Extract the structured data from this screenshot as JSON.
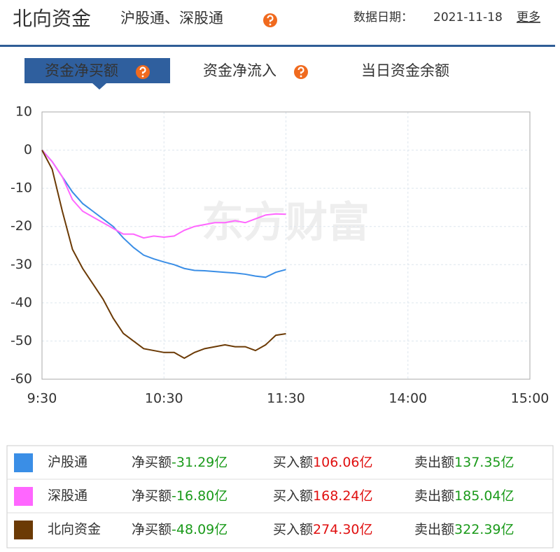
{
  "header": {
    "title": "北向资金",
    "subtitle": "沪股通、深股通",
    "date_label": "数据日期：",
    "date": "2021-11-18",
    "more": "更多"
  },
  "tabs": [
    "资金净买额",
    "资金净流入",
    "当日资金余额"
  ],
  "chart_data": {
    "type": "line",
    "watermark": "东方财富",
    "x": [
      0,
      5,
      10,
      15,
      20,
      25,
      30,
      35,
      40,
      45,
      50,
      55,
      60,
      65,
      70,
      75,
      80,
      85,
      90,
      95,
      100,
      105,
      110,
      115,
      120
    ],
    "xlim": [
      0,
      240
    ],
    "xticks": [
      {
        "value": 0,
        "label": "9:30"
      },
      {
        "value": 60,
        "label": "10:30"
      },
      {
        "value": 120,
        "label": "11:30"
      },
      {
        "value": 180,
        "label": "14:00"
      },
      {
        "value": 240,
        "label": "15:00"
      }
    ],
    "ylim": [
      -60,
      10
    ],
    "yticks": [
      10,
      0,
      -10,
      -20,
      -30,
      -40,
      -50,
      -60
    ],
    "grid": true,
    "series": [
      {
        "name": "沪股通",
        "color": "#3a8ee6",
        "values": [
          0,
          -3,
          -7,
          -11,
          -14,
          -16,
          -18,
          -20,
          -23,
          -25.5,
          -27.5,
          -28.5,
          -29.3,
          -30,
          -31,
          -31.5,
          -31.6,
          -31.8,
          -32,
          -32.2,
          -32.5,
          -33,
          -33.3,
          -32,
          -31.29
        ]
      },
      {
        "name": "深股通",
        "color": "#ff66ff",
        "values": [
          0,
          -3,
          -7,
          -13,
          -16,
          -17.5,
          -19,
          -20.5,
          -22,
          -22,
          -23,
          -22.5,
          -22.8,
          -22.5,
          -21,
          -20,
          -19.5,
          -19,
          -19,
          -18.5,
          -19,
          -18,
          -17,
          -16.7,
          -16.8
        ]
      },
      {
        "name": "北向资金",
        "color": "#6b3a05",
        "values": [
          0,
          -5,
          -16,
          -26,
          -31,
          -35,
          -39,
          -44,
          -48,
          -50,
          -52,
          -52.5,
          -53,
          -53,
          -54.5,
          -53,
          -52,
          -51.5,
          -51,
          -51.5,
          -51.5,
          -52.5,
          -51,
          -48.5,
          -48.09
        ]
      }
    ]
  },
  "summary": {
    "rows": [
      {
        "net_label": "净买额",
        "net": "-31.29亿",
        "buy_label": "买入额",
        "buy": "106.06亿",
        "sell_label": "卖出额",
        "sell": "137.35亿"
      },
      {
        "net_label": "净买额",
        "net": "-16.80亿",
        "buy_label": "买入额",
        "buy": "168.24亿",
        "sell_label": "卖出额",
        "sell": "185.04亿"
      },
      {
        "net_label": "净买额",
        "net": "-48.09亿",
        "buy_label": "买入额",
        "buy": "274.30亿",
        "sell_label": "卖出额",
        "sell": "322.39亿"
      }
    ]
  }
}
